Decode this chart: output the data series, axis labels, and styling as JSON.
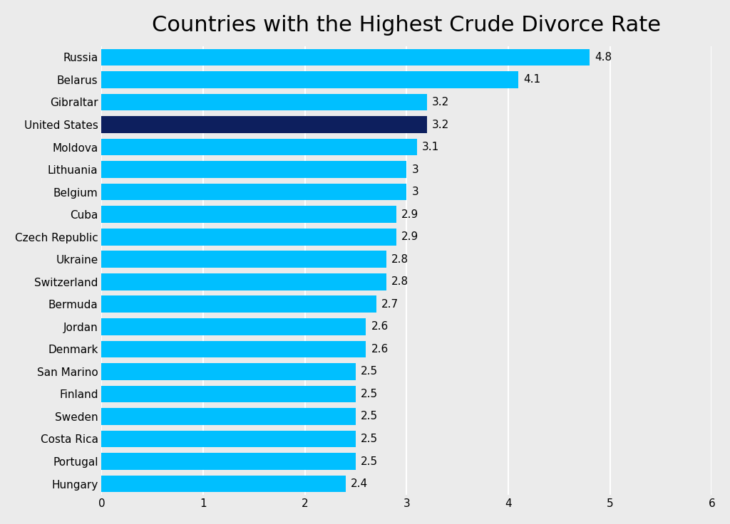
{
  "title": "Countries with the Highest Crude Divorce Rate",
  "categories": [
    "Russia",
    "Belarus",
    "Gibraltar",
    "United States",
    "Moldova",
    "Lithuania",
    "Belgium",
    "Cuba",
    "Czech Republic",
    "Ukraine",
    "Switzerland",
    "Bermuda",
    "Jordan",
    "Denmark",
    "San Marino",
    "Finland",
    "Sweden",
    "Costa Rica",
    "Portugal",
    "Hungary"
  ],
  "values": [
    4.8,
    4.1,
    3.2,
    3.2,
    3.1,
    3.0,
    3.0,
    2.9,
    2.9,
    2.8,
    2.8,
    2.7,
    2.6,
    2.6,
    2.5,
    2.5,
    2.5,
    2.5,
    2.5,
    2.4
  ],
  "bar_colors": [
    "#00BFFF",
    "#00BFFF",
    "#00BFFF",
    "#0D1F5E",
    "#00BFFF",
    "#00BFFF",
    "#00BFFF",
    "#00BFFF",
    "#00BFFF",
    "#00BFFF",
    "#00BFFF",
    "#00BFFF",
    "#00BFFF",
    "#00BFFF",
    "#00BFFF",
    "#00BFFF",
    "#00BFFF",
    "#00BFFF",
    "#00BFFF",
    "#00BFFF"
  ],
  "value_labels": [
    "4.8",
    "4.1",
    "3.2",
    "3.2",
    "3.1",
    "3",
    "3",
    "2.9",
    "2.9",
    "2.8",
    "2.8",
    "2.7",
    "2.6",
    "2.6",
    "2.5",
    "2.5",
    "2.5",
    "2.5",
    "2.5",
    "2.4"
  ],
  "xlim": [
    0,
    6
  ],
  "xticks": [
    0,
    1,
    2,
    3,
    4,
    5,
    6
  ],
  "background_color": "#EBEBEB",
  "title_fontsize": 22,
  "label_fontsize": 11,
  "value_fontsize": 11,
  "bar_height": 0.75
}
